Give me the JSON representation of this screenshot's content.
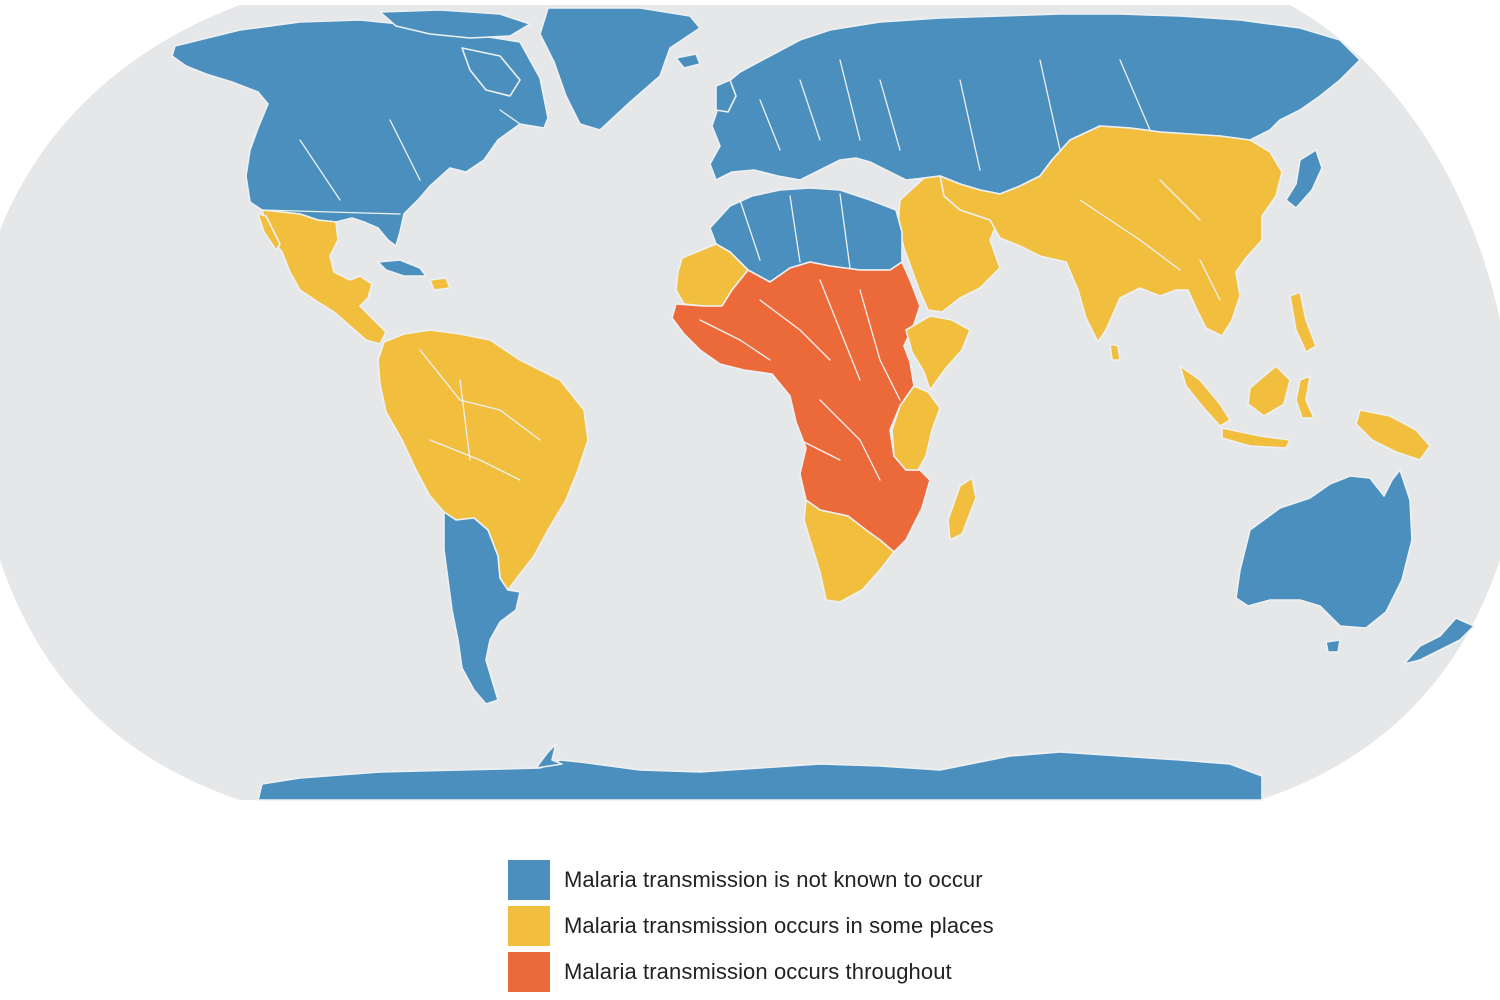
{
  "legend": {
    "items": [
      {
        "key": "none",
        "label": "Malaria transmission is not known to occur",
        "color": "#4a8fbd"
      },
      {
        "key": "some",
        "label": "Malaria transmission occurs in some places",
        "color": "#f2be3e"
      },
      {
        "key": "throughout",
        "label": "Malaria transmission occurs throughout",
        "color": "#ec6a3a"
      }
    ]
  },
  "colors": {
    "ocean": "#e6e7e9",
    "background": "#ffffff",
    "borders": "#eef1f3"
  },
  "regions": [
    {
      "name": "north-america",
      "category": "none"
    },
    {
      "name": "greenland",
      "category": "none"
    },
    {
      "name": "mexico-central-america",
      "category": "some"
    },
    {
      "name": "caribbean",
      "category": "none"
    },
    {
      "name": "south-america-north",
      "category": "some"
    },
    {
      "name": "south-america-south",
      "category": "none"
    },
    {
      "name": "europe-russia-central-asia",
      "category": "none"
    },
    {
      "name": "north-africa",
      "category": "none"
    },
    {
      "name": "west-africa-sahel",
      "category": "some"
    },
    {
      "name": "central-africa",
      "category": "throughout"
    },
    {
      "name": "east-africa",
      "category": "some"
    },
    {
      "name": "southern-africa",
      "category": "some"
    },
    {
      "name": "madagascar",
      "category": "some"
    },
    {
      "name": "middle-east",
      "category": "some"
    },
    {
      "name": "south-east-asia",
      "category": "some"
    },
    {
      "name": "indonesia",
      "category": "some"
    },
    {
      "name": "japan",
      "category": "none"
    },
    {
      "name": "australia",
      "category": "none"
    },
    {
      "name": "new-zealand",
      "category": "none"
    },
    {
      "name": "antarctica",
      "category": "none"
    }
  ]
}
